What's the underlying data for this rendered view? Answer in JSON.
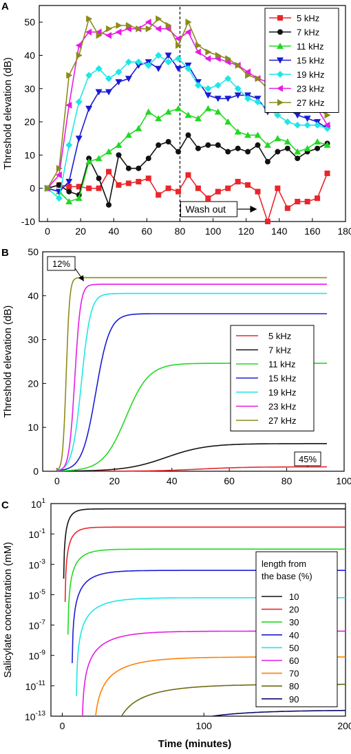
{
  "chart_data": [
    {
      "panel": "A",
      "type": "line",
      "ylabel": "Threshold elevation (dB)",
      "xlim": [
        -5,
        180
      ],
      "ylim": [
        -10,
        55
      ],
      "xticks": [
        0,
        20,
        40,
        60,
        80,
        100,
        120,
        140,
        160,
        180
      ],
      "yticks": [
        -10,
        0,
        10,
        20,
        30,
        40,
        50
      ],
      "grid": false,
      "legend_position": "top-right",
      "washout_x": 80,
      "annotation": "Wash out",
      "series": [
        {
          "name": "5 kHz",
          "color": "#e8262b",
          "marker": "square",
          "x": [
            0,
            7,
            13,
            19,
            25,
            31,
            37,
            43,
            49,
            55,
            61,
            67,
            73,
            79,
            85,
            91,
            97,
            103,
            109,
            115,
            121,
            127,
            133,
            139,
            145,
            151,
            157,
            163,
            169
          ],
          "y": [
            0,
            1,
            0.5,
            0.5,
            0,
            0,
            5,
            1,
            1.5,
            2,
            3,
            -2,
            0,
            -1,
            4,
            0,
            -3,
            -1,
            0,
            2,
            1,
            -1,
            -10,
            0,
            -6,
            -4,
            -4,
            -3,
            4.5
          ]
        },
        {
          "name": "7 kHz",
          "color": "#111111",
          "marker": "circle",
          "x": [
            0,
            7,
            13,
            19,
            25,
            31,
            37,
            43,
            49,
            55,
            61,
            67,
            73,
            79,
            85,
            91,
            97,
            103,
            109,
            115,
            121,
            127,
            133,
            139,
            145,
            151,
            157,
            163,
            169
          ],
          "y": [
            0,
            1,
            -1,
            -2,
            9,
            3,
            -5,
            10,
            6,
            6,
            9,
            13,
            14,
            11,
            16,
            12,
            13,
            13,
            11,
            12,
            11,
            13,
            8,
            11,
            12,
            9,
            11,
            12,
            13.5
          ]
        },
        {
          "name": "11 kHz",
          "color": "#22d822",
          "marker": "triangle-up",
          "x": [
            0,
            7,
            13,
            19,
            25,
            31,
            37,
            43,
            49,
            55,
            61,
            67,
            73,
            79,
            85,
            91,
            97,
            103,
            109,
            115,
            121,
            127,
            133,
            139,
            145,
            151,
            157,
            163,
            169
          ],
          "y": [
            0,
            -1,
            -4,
            -3,
            8,
            9,
            11,
            13,
            16,
            18,
            23,
            21,
            23,
            24,
            22,
            21,
            24,
            23,
            20,
            17,
            16,
            16,
            13,
            15,
            14,
            11,
            12,
            14,
            13
          ]
        },
        {
          "name": "15 kHz",
          "color": "#1a1ad4",
          "marker": "triangle-down",
          "x": [
            0,
            7,
            13,
            19,
            25,
            31,
            37,
            43,
            49,
            55,
            61,
            67,
            73,
            79,
            85,
            91,
            97,
            103,
            109,
            115,
            121,
            127,
            133,
            139,
            145,
            151,
            157,
            163,
            169
          ],
          "y": [
            0,
            -1,
            2,
            15,
            24,
            29,
            29,
            32,
            33,
            37,
            38,
            36,
            40,
            36,
            37,
            32,
            28,
            27,
            27,
            28,
            28,
            27,
            23,
            24,
            24,
            22,
            21,
            20,
            18
          ]
        },
        {
          "name": "19 kHz",
          "color": "#1fe6e6",
          "marker": "diamond",
          "x": [
            0,
            7,
            13,
            19,
            25,
            31,
            37,
            43,
            49,
            55,
            61,
            67,
            73,
            79,
            85,
            91,
            97,
            103,
            109,
            115,
            121,
            127,
            133,
            139,
            145,
            151,
            157,
            163,
            169
          ],
          "y": [
            0,
            -3,
            13,
            26,
            34,
            36,
            33,
            35,
            38,
            38,
            37,
            40,
            38,
            39,
            36,
            31,
            30,
            31,
            33,
            30,
            27,
            26,
            24,
            22,
            20,
            19,
            19,
            19,
            18
          ]
        },
        {
          "name": "23 kHz",
          "color": "#e51be5",
          "marker": "triangle-left",
          "x": [
            0,
            7,
            13,
            19,
            25,
            31,
            37,
            43,
            49,
            55,
            61,
            67,
            73,
            79,
            85,
            91,
            97,
            103,
            109,
            115,
            121,
            127,
            133,
            139,
            145,
            151,
            157,
            163,
            169
          ],
          "y": [
            0,
            4,
            25,
            43,
            47,
            47,
            46,
            47,
            48,
            48,
            50,
            48,
            48,
            45,
            47,
            41,
            39,
            39,
            38,
            37,
            35,
            33,
            32,
            30,
            29,
            26,
            25,
            24,
            19
          ]
        },
        {
          "name": "27 kHz",
          "color": "#8b8b1a",
          "marker": "triangle-right",
          "x": [
            0,
            7,
            13,
            19,
            25,
            31,
            37,
            43,
            49,
            55,
            61,
            67,
            73,
            79,
            85,
            91,
            97,
            103,
            109,
            115,
            121,
            127,
            133,
            139,
            145,
            151,
            157,
            163,
            169
          ],
          "y": [
            0,
            6,
            34,
            40,
            51,
            46,
            48,
            49,
            49,
            48,
            48,
            51,
            49,
            43,
            50,
            43,
            41,
            40,
            39,
            37,
            34,
            33,
            30,
            26,
            24,
            25,
            25,
            24,
            22
          ]
        }
      ]
    },
    {
      "panel": "B",
      "type": "line",
      "ylabel": "Threshold elevation (dB)",
      "xlim": [
        -5,
        100
      ],
      "ylim": [
        0,
        50
      ],
      "xticks": [
        0,
        20,
        40,
        60,
        80,
        100
      ],
      "yticks": [
        0,
        10,
        20,
        30,
        40,
        50
      ],
      "grid": false,
      "legend_position": "center-right",
      "annotations": [
        {
          "text": "12%",
          "x": 3,
          "y": 45
        },
        {
          "text": "45%",
          "x": 86,
          "y": 3
        }
      ],
      "series": [
        {
          "name": "5 kHz",
          "color": "#e8262b",
          "plateau": 1.0,
          "midpoint": 50,
          "scale": 8,
          "x_end": 94
        },
        {
          "name": "7 kHz",
          "color": "#111111",
          "plateau": 6.3,
          "midpoint": 38,
          "scale": 7,
          "x_end": 94
        },
        {
          "name": "11 kHz",
          "color": "#22d822",
          "plateau": 24.6,
          "midpoint": 24,
          "scale": 4,
          "x_end": 94
        },
        {
          "name": "15 kHz",
          "color": "#1a1ad4",
          "plateau": 35.9,
          "midpoint": 13.5,
          "scale": 2.4,
          "x_end": 94
        },
        {
          "name": "19 kHz",
          "color": "#1fe6e6",
          "plateau": 40.5,
          "midpoint": 8.5,
          "scale": 1.6,
          "x_end": 94
        },
        {
          "name": "23 kHz",
          "color": "#e51be5",
          "plateau": 42.6,
          "midpoint": 6.2,
          "scale": 1.0,
          "x_end": 94
        },
        {
          "name": "27 kHz",
          "color": "#8b8b1a",
          "plateau": 44.1,
          "midpoint": 3.2,
          "scale": 0.6,
          "x_end": 94
        }
      ]
    },
    {
      "panel": "C",
      "type": "line",
      "xlabel": "Time (minutes)",
      "ylabel": "Salicylate concentration (mM)",
      "xlim": [
        -8,
        200
      ],
      "ylim_log10": [
        -13,
        1
      ],
      "yscale": "log",
      "xticks": [
        0,
        100,
        200
      ],
      "yticks_exp": [
        1,
        -1,
        -3,
        -5,
        -7,
        -9,
        -11,
        -13
      ],
      "grid": false,
      "legend_position": "right",
      "legend_title": "length from the base (%)",
      "series": [
        {
          "name": "10",
          "color": "#111111",
          "plateau_log10": 0.65,
          "time_constant": 4,
          "delay": 1,
          "x_end": 200
        },
        {
          "name": "20",
          "color": "#e8262b",
          "plateau_log10": -0.55,
          "time_constant": 5,
          "delay": 2,
          "x_end": 200
        },
        {
          "name": "30",
          "color": "#22d822",
          "plateau_log10": -2.0,
          "time_constant": 8,
          "delay": 4,
          "x_end": 200
        },
        {
          "name": "40",
          "color": "#1a1ad4",
          "plateau_log10": -3.4,
          "time_constant": 11,
          "delay": 7,
          "x_end": 200
        },
        {
          "name": "50",
          "color": "#1fe6e6",
          "plateau_log10": -5.2,
          "time_constant": 14,
          "delay": 10,
          "x_end": 200
        },
        {
          "name": "60",
          "color": "#e51be5",
          "plateau_log10": -7.4,
          "time_constant": 18,
          "delay": 14,
          "x_end": 200
        },
        {
          "name": "70",
          "color": "#ff8000",
          "plateau_log10": -9.1,
          "time_constant": 22,
          "delay": 22,
          "x_end": 200
        },
        {
          "name": "80",
          "color": "#6b6b10",
          "plateau_log10": -10.9,
          "time_constant": 28,
          "delay": 34,
          "x_end": 200
        },
        {
          "name": "90",
          "color": "#0a0a6a",
          "plateau_log10": -12.6,
          "time_constant": 35,
          "delay": 55,
          "x_end": 200
        }
      ]
    }
  ]
}
